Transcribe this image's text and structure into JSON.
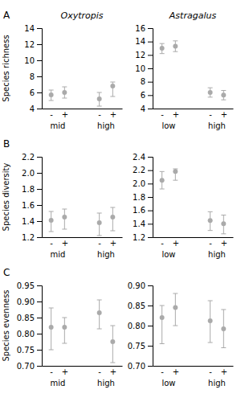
{
  "chart_data": [
    {
      "type": "errorbar",
      "title": "Oxytropis",
      "annotations": [
        "A"
      ],
      "ylabel": "Species richness",
      "categories": [
        "-",
        "+",
        "-",
        "+"
      ],
      "groups": [
        "mid",
        "high"
      ],
      "values": [
        5.7,
        6.0,
        5.2,
        6.8
      ],
      "ci_low": [
        5.0,
        5.3,
        4.3,
        5.5
      ],
      "ci_high": [
        6.3,
        6.7,
        6.0,
        7.3
      ],
      "color": "#aaaaaa",
      "marker": "circle",
      "ylim": [
        4,
        14
      ],
      "yticks": [
        4,
        6,
        8,
        10,
        12,
        14
      ]
    },
    {
      "type": "errorbar",
      "title": "Astragalus",
      "categories": [
        "-",
        "+",
        "-",
        "+"
      ],
      "groups": [
        "low",
        "high"
      ],
      "values": [
        13.0,
        13.3,
        6.4,
        6.0
      ],
      "ci_low": [
        12.2,
        12.5,
        5.7,
        5.3
      ],
      "ci_high": [
        13.7,
        14.1,
        7.1,
        6.7
      ],
      "color": "#aaaaaa",
      "marker": "circle",
      "ylim": [
        4,
        16
      ],
      "yticks": [
        4,
        6,
        8,
        10,
        12,
        14,
        16
      ]
    },
    {
      "type": "errorbar",
      "annotations": [
        "B"
      ],
      "ylabel": "Species diversity",
      "categories": [
        "-",
        "+",
        "-",
        "+"
      ],
      "groups": [
        "mid",
        "high"
      ],
      "values": [
        1.41,
        1.45,
        1.38,
        1.45
      ],
      "ci_low": [
        1.27,
        1.3,
        1.22,
        1.28
      ],
      "ci_high": [
        1.52,
        1.55,
        1.5,
        1.57
      ],
      "color": "#aaaaaa",
      "marker": "circle",
      "ylim": [
        1.2,
        2.2
      ],
      "yticks": [
        1.2,
        1.4,
        1.6,
        1.8,
        {
          "value": 2.0,
          "label": "2.0"
        },
        2.2
      ]
    },
    {
      "type": "errorbar",
      "categories": [
        "-",
        "+",
        "-",
        "+"
      ],
      "groups": [
        "low",
        "high"
      ],
      "values": [
        2.05,
        2.18,
        1.45,
        1.4
      ],
      "ci_low": [
        1.92,
        2.05,
        1.3,
        1.25
      ],
      "ci_high": [
        2.18,
        2.22,
        1.58,
        1.53
      ],
      "color": "#aaaaaa",
      "marker": "circle",
      "ylim": [
        1.2,
        2.4
      ],
      "yticks": [
        1.2,
        1.4,
        1.6,
        1.8,
        {
          "value": 2.0,
          "label": "2.0"
        },
        2.2,
        2.4
      ]
    },
    {
      "type": "errorbar",
      "annotations": [
        "C"
      ],
      "ylabel": "Species evenness",
      "categories": [
        "-",
        "+",
        "-",
        "+"
      ],
      "groups": [
        "mid",
        "high"
      ],
      "values": [
        0.82,
        0.82,
        0.865,
        0.775
      ],
      "ci_low": [
        0.75,
        0.77,
        0.815,
        0.71
      ],
      "ci_high": [
        0.88,
        0.85,
        0.905,
        0.825
      ],
      "color": "#aaaaaa",
      "marker": "circle",
      "ylim": [
        0.7,
        0.95
      ],
      "yticks": [
        {
          "value": 0.7,
          "label": "0.70"
        },
        0.75,
        {
          "value": 0.8,
          "label": "0.80"
        },
        0.85,
        {
          "value": 0.9,
          "label": "0.90"
        },
        0.95
      ]
    },
    {
      "type": "errorbar",
      "categories": [
        "-",
        "+",
        "-",
        "+"
      ],
      "groups": [
        "low",
        "high"
      ],
      "values": [
        0.82,
        0.845,
        0.812,
        0.792
      ],
      "ci_low": [
        0.755,
        0.8,
        0.758,
        0.745
      ],
      "ci_high": [
        0.85,
        0.88,
        0.862,
        0.84
      ],
      "color": "#aaaaaa",
      "marker": "circle",
      "ylim": [
        0.7,
        0.9
      ],
      "yticks": [
        {
          "value": 0.7,
          "label": "0.70"
        },
        0.75,
        {
          "value": 0.8,
          "label": "0.80"
        },
        0.85,
        {
          "value": 0.9,
          "label": "0.90"
        }
      ]
    }
  ]
}
